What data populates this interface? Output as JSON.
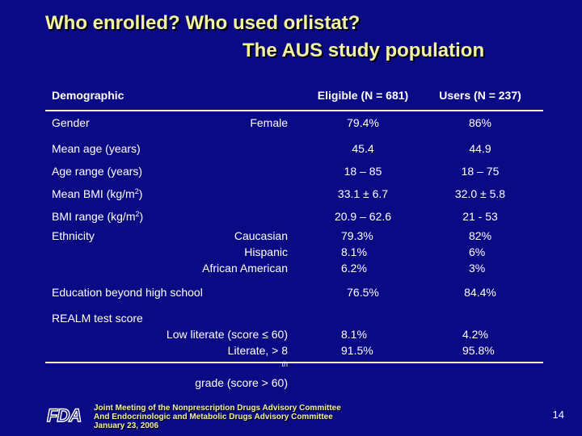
{
  "title": {
    "line1": "Who enrolled? Who used orlistat?",
    "line2": "The AUS study population"
  },
  "table": {
    "headers": {
      "demographic": "Demographic",
      "eligible": "Eligible (N = 681)",
      "users": "Users (N = 237)"
    },
    "rows": {
      "gender": {
        "label": "Gender",
        "sublabel": "Female",
        "eligible": "79.4%",
        "users": "86%"
      },
      "mean_age": {
        "label": "Mean age (years)",
        "eligible": "45.4",
        "users": "44.9"
      },
      "age_range": {
        "label": "Age range (years)",
        "eligible": "18 – 85",
        "users": "18 – 75"
      },
      "mean_bmi": {
        "label": "Mean BMI (kg/m",
        "label_sup": "2",
        "label_end": ")",
        "eligible": "33.1 ± 6.7",
        "users": "32.0 ± 5.8"
      },
      "bmi_range": {
        "label": "BMI range (kg/m",
        "label_sup": "2",
        "label_end": ")",
        "eligible": "20.9 – 62.6",
        "users": "21 - 53"
      },
      "ethnicity": {
        "label": "Ethnicity",
        "sublabels": [
          "Caucasian",
          "Hispanic",
          "African American"
        ],
        "eligible": [
          "79.3%",
          "8.1%",
          "6.2%"
        ],
        "users": [
          "82%",
          "6%",
          "3%"
        ]
      },
      "education": {
        "label": "Education beyond high school",
        "eligible": "76.5%",
        "users": "84.4%"
      },
      "realm": {
        "label": "REALM test score",
        "sub1": "Low literate (score ≤ 60)",
        "sub2_a": "Literate, > 8",
        "sub2_sup": "th",
        "sub2_b": " grade (score > 60)",
        "eligible": [
          "8.1%",
          "91.5%"
        ],
        "users": [
          "4.2%",
          "95.8%"
        ]
      }
    }
  },
  "footer": {
    "logo_text": "FDA",
    "line1": "Joint Meeting of the Nonprescription Drugs Advisory Committee",
    "line2": "And Endocrinologic and Metabolic Drugs Advisory Committee",
    "line3": "January 23, 2006",
    "page_number": "14"
  },
  "colors": {
    "background": "#0a0a84",
    "title": "#f2f2a0",
    "text": "#ffffff",
    "rule": "#f2f2a0"
  }
}
